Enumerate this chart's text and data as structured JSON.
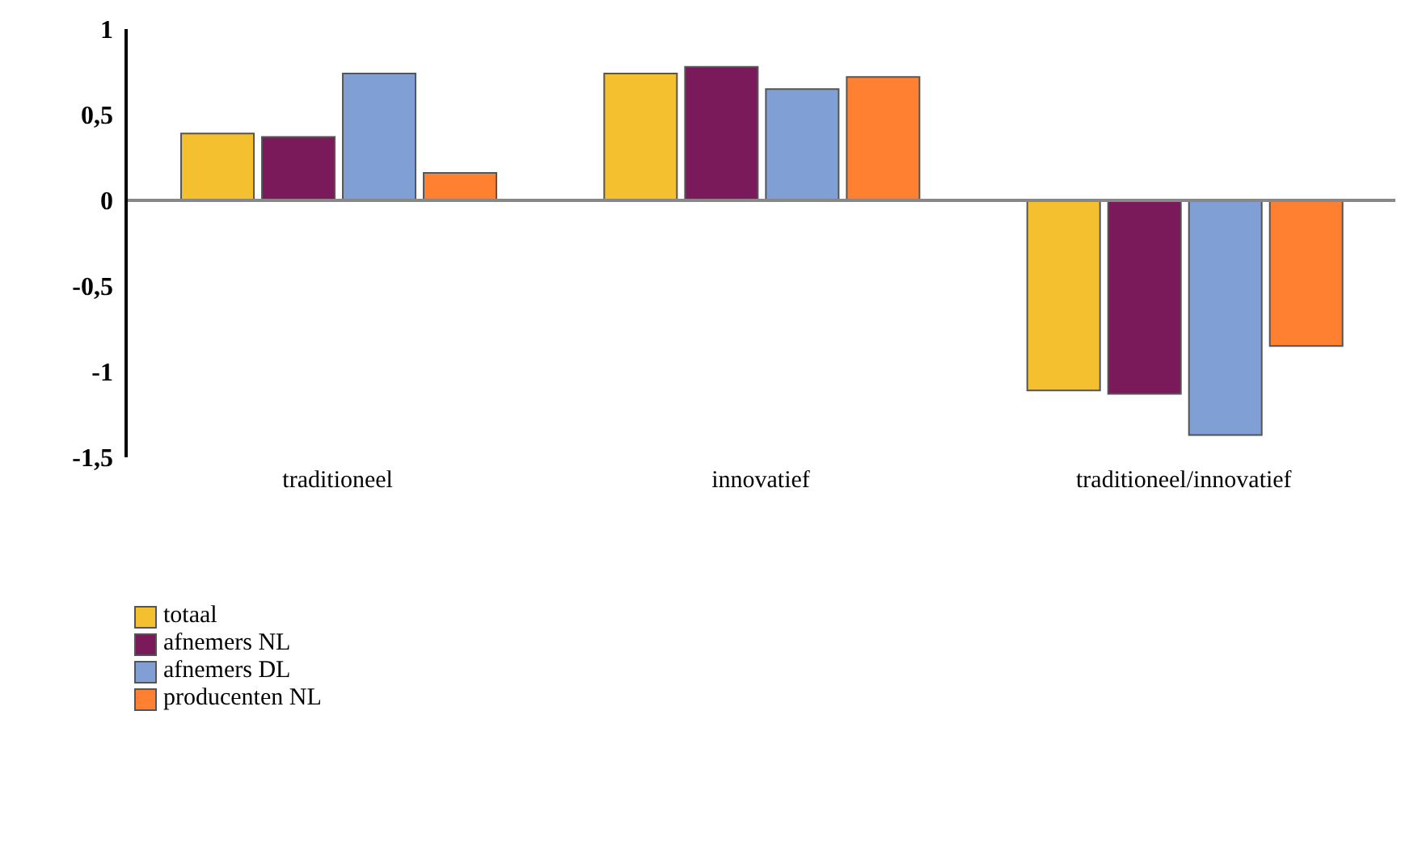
{
  "chart_data": {
    "type": "bar",
    "categories": [
      "traditioneel",
      "innovatief",
      "traditioneel/innovatief"
    ],
    "series": [
      {
        "name": "totaal",
        "color": "#f5c030",
        "values": [
          0.39,
          0.74,
          -1.11
        ]
      },
      {
        "name": "afnemers NL",
        "color": "#7a1a5a",
        "values": [
          0.37,
          0.78,
          -1.13
        ]
      },
      {
        "name": "afnemers DL",
        "color": "#7f9fd5",
        "values": [
          0.74,
          0.65,
          -1.37
        ]
      },
      {
        "name": "producenten NL",
        "color": "#ff8030",
        "values": [
          0.16,
          0.72,
          -0.85
        ]
      }
    ],
    "ylim": [
      -1.5,
      1
    ],
    "yticks": [
      {
        "value": 1,
        "label": "1"
      },
      {
        "value": 0.5,
        "label": "0,5"
      },
      {
        "value": 0,
        "label": "0"
      },
      {
        "value": -0.5,
        "label": "-0,5"
      },
      {
        "value": -1,
        "label": "-1"
      },
      {
        "value": -1.5,
        "label": "-1,5"
      }
    ],
    "ref_lines": [
      {
        "axis": "y",
        "value": 0,
        "color": "#888888"
      }
    ],
    "grid": false,
    "legend": "bottom left"
  }
}
